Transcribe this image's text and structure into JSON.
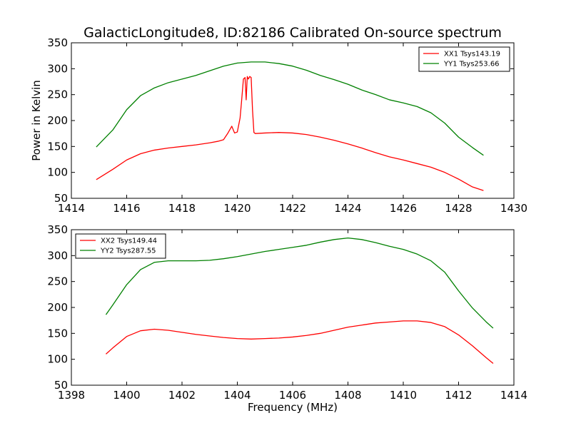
{
  "chart_data": [
    {
      "type": "line",
      "title": "GalacticLongitude8, ID:82186 Calibrated On-source spectrum",
      "xlabel": "",
      "ylabel": "Power in Kelvin",
      "xlim": [
        1414,
        1430
      ],
      "ylim": [
        50,
        350
      ],
      "xticks": [
        1414,
        1416,
        1418,
        1420,
        1422,
        1424,
        1426,
        1428,
        1430
      ],
      "yticks": [
        50,
        100,
        150,
        200,
        250,
        300,
        350
      ],
      "legend_position": "top-right",
      "grid": false,
      "series": [
        {
          "name": "XX1 Tsys143.19",
          "color": "#ff0000",
          "x": [
            1414.9,
            1415.5,
            1416.0,
            1416.5,
            1417.0,
            1417.5,
            1418.0,
            1418.5,
            1419.0,
            1419.3,
            1419.5,
            1419.65,
            1419.8,
            1419.9,
            1420.0,
            1420.1,
            1420.15,
            1420.22,
            1420.28,
            1420.32,
            1420.36,
            1420.4,
            1420.45,
            1420.5,
            1420.55,
            1420.6,
            1420.65,
            1421.0,
            1421.5,
            1422.0,
            1422.5,
            1423.0,
            1423.5,
            1424.0,
            1424.5,
            1425.0,
            1425.5,
            1426.0,
            1426.5,
            1427.0,
            1427.5,
            1428.0,
            1428.5,
            1428.9
          ],
          "values": [
            86,
            106,
            124,
            136,
            143,
            147,
            150,
            153,
            157,
            160,
            163,
            175,
            189,
            176,
            178,
            205,
            235,
            280,
            283,
            240,
            285,
            280,
            285,
            283,
            220,
            177,
            175,
            176,
            177,
            176,
            173,
            168,
            162,
            155,
            147,
            138,
            130,
            124,
            117,
            110,
            100,
            87,
            72,
            65
          ]
        },
        {
          "name": "YY1 Tsys253.66",
          "color": "#008000",
          "x": [
            1414.9,
            1415.5,
            1416.0,
            1416.5,
            1417.0,
            1417.5,
            1418.0,
            1418.5,
            1419.0,
            1419.5,
            1420.0,
            1420.5,
            1421.0,
            1421.5,
            1422.0,
            1422.5,
            1423.0,
            1423.5,
            1424.0,
            1424.5,
            1425.0,
            1425.5,
            1426.0,
            1426.5,
            1427.0,
            1427.5,
            1428.0,
            1428.5,
            1428.9
          ],
          "values": [
            149,
            182,
            221,
            248,
            263,
            273,
            280,
            287,
            296,
            305,
            311,
            313,
            313,
            310,
            305,
            297,
            287,
            279,
            270,
            259,
            250,
            240,
            234,
            227,
            215,
            195,
            168,
            148,
            133
          ]
        }
      ]
    },
    {
      "type": "line",
      "title": "",
      "xlabel": "Frequency (MHz)",
      "ylabel": "",
      "xlim": [
        1398,
        1414
      ],
      "ylim": [
        50,
        350
      ],
      "xticks": [
        1398,
        1400,
        1402,
        1404,
        1406,
        1408,
        1410,
        1412,
        1414
      ],
      "yticks": [
        50,
        100,
        150,
        200,
        250,
        300,
        350
      ],
      "legend_position": "top-left",
      "grid": false,
      "series": [
        {
          "name": "XX2 Tsys149.44",
          "color": "#ff0000",
          "x": [
            1399.25,
            1399.5,
            1400.0,
            1400.5,
            1401.0,
            1401.5,
            1402.0,
            1402.5,
            1403.0,
            1403.5,
            1404.0,
            1404.5,
            1405.0,
            1405.5,
            1406.0,
            1406.5,
            1407.0,
            1407.5,
            1408.0,
            1408.5,
            1409.0,
            1409.5,
            1410.0,
            1410.5,
            1411.0,
            1411.5,
            1412.0,
            1412.5,
            1413.0,
            1413.25
          ],
          "values": [
            110,
            122,
            144,
            155,
            158,
            156,
            152,
            148,
            145,
            142,
            140,
            139,
            140,
            141,
            143,
            146,
            150,
            156,
            162,
            166,
            170,
            172,
            174,
            174,
            171,
            163,
            147,
            126,
            103,
            92
          ]
        },
        {
          "name": "YY2 Tsys287.55",
          "color": "#008000",
          "x": [
            1399.25,
            1399.5,
            1400.0,
            1400.5,
            1401.0,
            1401.5,
            1402.0,
            1402.5,
            1403.0,
            1403.5,
            1404.0,
            1404.5,
            1405.0,
            1405.5,
            1406.0,
            1406.5,
            1407.0,
            1407.5,
            1408.0,
            1408.5,
            1409.0,
            1409.5,
            1410.0,
            1410.5,
            1411.0,
            1411.5,
            1412.0,
            1412.5,
            1413.0,
            1413.25
          ],
          "values": [
            186,
            205,
            244,
            273,
            287,
            290,
            290,
            290,
            291,
            294,
            298,
            303,
            308,
            312,
            316,
            320,
            326,
            331,
            334,
            331,
            325,
            318,
            312,
            303,
            290,
            268,
            232,
            199,
            172,
            160
          ]
        }
      ]
    }
  ]
}
